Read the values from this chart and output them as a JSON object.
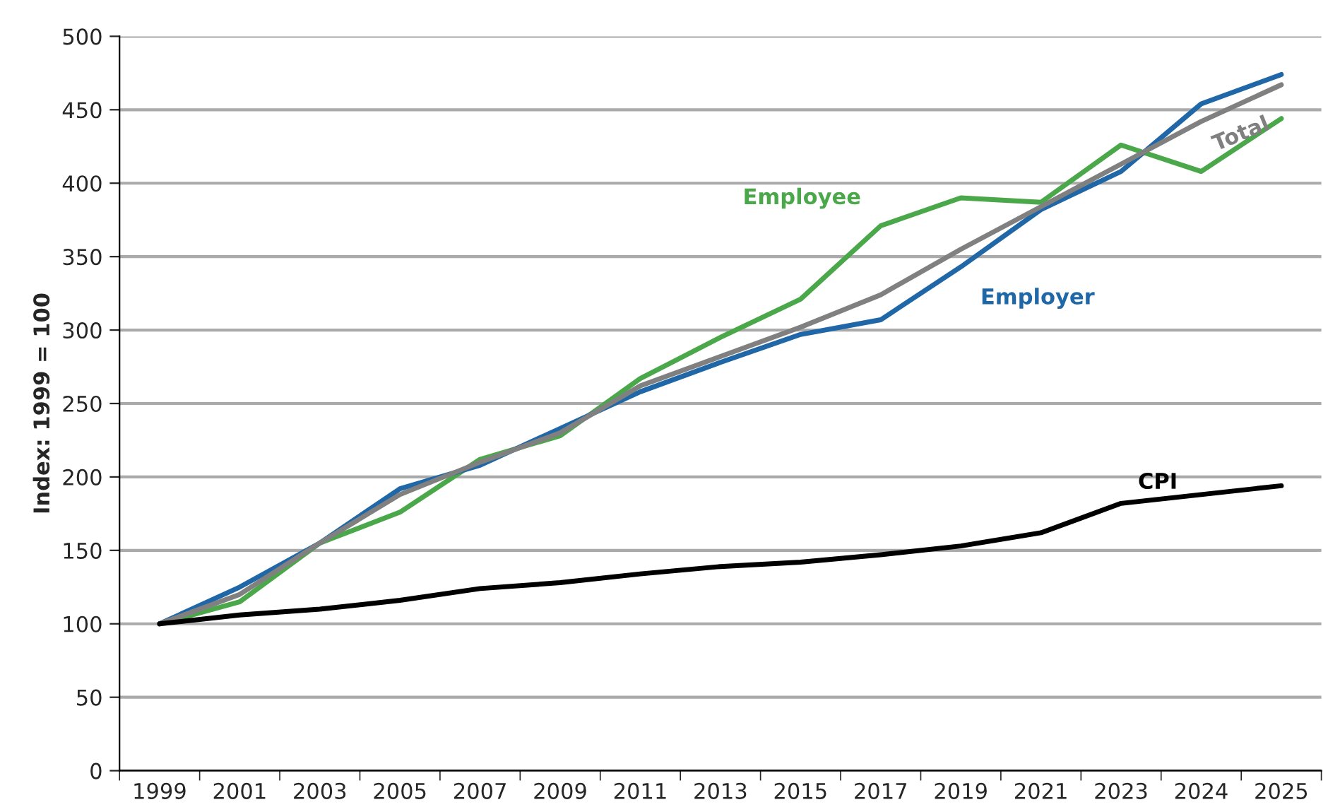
{
  "chart_data": {
    "type": "line",
    "ylabel": "Index: 1999 = 100",
    "categories": [
      "1999",
      "2001",
      "2003",
      "2005",
      "2007",
      "2009",
      "2011",
      "2013",
      "2015",
      "2017",
      "2019",
      "2021",
      "2023",
      "2024",
      "2025"
    ],
    "series": [
      {
        "name": "Employee",
        "color": "#4aa84a",
        "values": [
          100,
          115,
          155,
          176,
          212,
          228,
          267,
          295,
          321,
          371,
          390,
          387,
          426,
          408,
          444
        ]
      },
      {
        "name": "Employer",
        "color": "#1f67a6",
        "values": [
          100,
          125,
          155,
          192,
          208,
          233,
          258,
          278,
          297,
          307,
          343,
          382,
          408,
          454,
          474
        ]
      },
      {
        "name": "Total",
        "color": "#808080",
        "values": [
          100,
          120,
          155,
          188,
          210,
          230,
          262,
          282,
          302,
          324,
          355,
          384,
          413,
          442,
          467
        ]
      },
      {
        "name": "CPI",
        "color": "#000000",
        "values": [
          100,
          106,
          110,
          116,
          124,
          128,
          134,
          139,
          142,
          147,
          153,
          162,
          182,
          188,
          194
        ]
      }
    ],
    "ylim": [
      0,
      500
    ],
    "yticks": [
      0,
      50,
      100,
      150,
      200,
      250,
      300,
      350,
      400,
      450,
      500
    ],
    "grid": "y",
    "legend": false,
    "line_style": "solid",
    "marker": "none"
  }
}
